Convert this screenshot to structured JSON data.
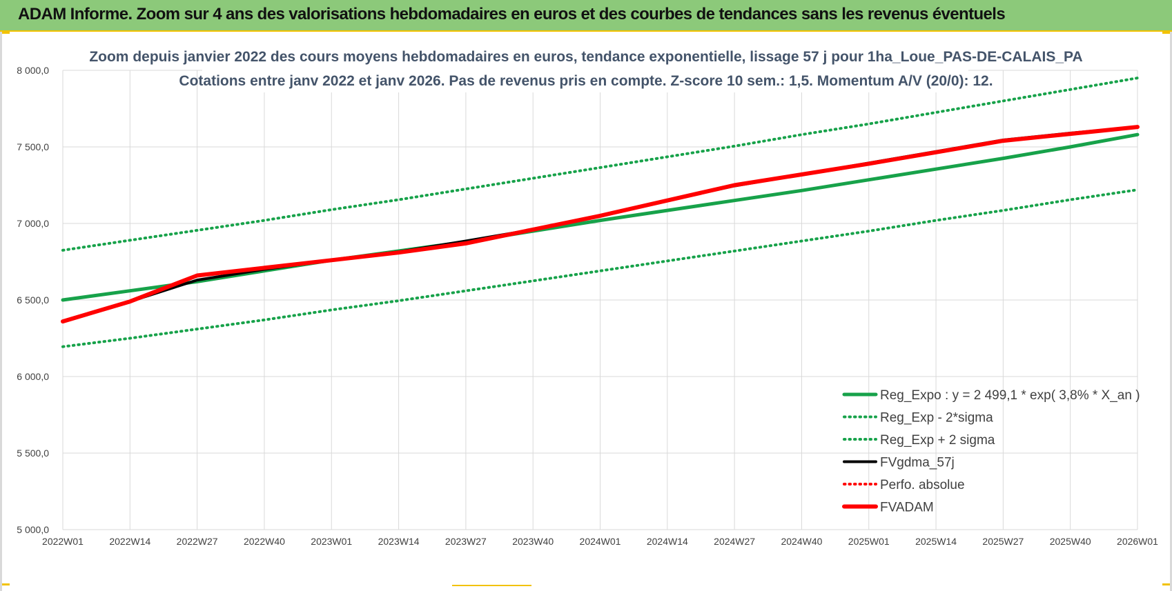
{
  "banner": {
    "title": "ADAM Informe. Zoom sur 4 ans des valorisations hebdomadaires en euros et des courbes de tendances sans les revenus éventuels"
  },
  "colors": {
    "banner_bg": "#8cc97a",
    "accent_yellow": "#f2c200",
    "trend_green": "#17a24a",
    "fvadam_red": "#ff0000",
    "fvgdma_black": "#000000",
    "grid": "#d9d9d9",
    "title_text": "#44546a"
  },
  "chart_data": {
    "type": "line",
    "title_lines": [
      "Zoom depuis janvier 2022 des cours moyens hebdomadaires en euros, tendance exponentielle, lissage 57 j pour 1ha_Loue_PAS-DE-CALAIS_PA",
      "Cotations entre janv 2022 et janv 2026. Pas de revenus pris en compte. Z-score 10 sem.: 1,5. Momentum A/V (20/0): 12."
    ],
    "ylim": [
      5000,
      8000
    ],
    "y_ticks": [
      "8 000,0",
      "7 500,0",
      "7 000,0",
      "6 500,0",
      "6 000,0",
      "5 500,0",
      "5 000,0"
    ],
    "y_tick_values": [
      8000,
      7500,
      7000,
      6500,
      6000,
      5500,
      5000
    ],
    "x_ticks": [
      "2022W01",
      "2022W14",
      "2022W27",
      "2022W40",
      "2023W01",
      "2023W14",
      "2023W27",
      "2023W40",
      "2024W01",
      "2024W14",
      "2024W27",
      "2024W40",
      "2025W01",
      "2025W14",
      "2025W27",
      "2025W40",
      "2026W01"
    ],
    "grid": true,
    "legend_position": "bottom-right",
    "series": [
      {
        "name": "Reg_Expo : y = 2 499,1 * exp( 3,8% * X_an )",
        "style": "solid-thick",
        "color": "#17a24a",
        "values": [
          6500,
          6560,
          6620,
          6690,
          6760,
          6820,
          6880,
          6950,
          7020,
          7085,
          7150,
          7215,
          7285,
          7355,
          7425,
          7500,
          7580
        ]
      },
      {
        "name": "Reg_Exp - 2*sigma",
        "style": "dotted",
        "color": "#17a24a",
        "values": [
          6195,
          6250,
          6310,
          6370,
          6435,
          6495,
          6560,
          6625,
          6690,
          6755,
          6820,
          6885,
          6950,
          7020,
          7085,
          7155,
          7220
        ]
      },
      {
        "name": "Reg_Exp + 2 sigma",
        "style": "dotted",
        "color": "#17a24a",
        "values": [
          6825,
          6890,
          6955,
          7020,
          7090,
          7155,
          7225,
          7295,
          7365,
          7435,
          7505,
          7580,
          7650,
          7725,
          7800,
          7875,
          7950
        ]
      },
      {
        "name": "FVgdma_57j",
        "style": "solid",
        "color": "#000000",
        "values": [
          6360,
          6490,
          6630,
          6700,
          6760,
          6815,
          6885,
          6960,
          7050,
          7150,
          7245,
          7320,
          7395,
          7470,
          7545,
          7590,
          7630
        ]
      },
      {
        "name": "Perfo. absolue",
        "style": "dotted",
        "color": "#ff0000",
        "values": []
      },
      {
        "name": "FVADAM",
        "style": "solid-thick",
        "color": "#ff0000",
        "values": [
          6360,
          6490,
          6660,
          6710,
          6760,
          6810,
          6870,
          6960,
          7050,
          7150,
          7250,
          7320,
          7390,
          7465,
          7540,
          7585,
          7630
        ]
      }
    ]
  }
}
